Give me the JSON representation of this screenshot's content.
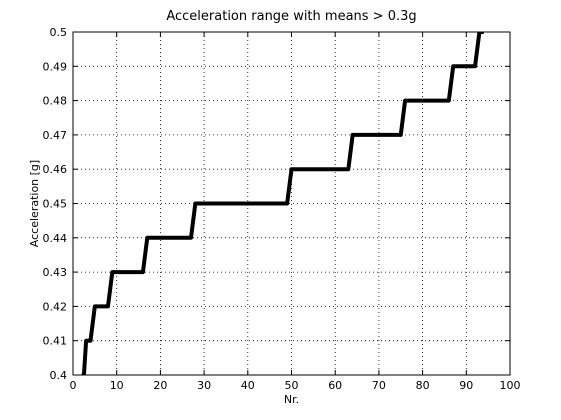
{
  "chart_data": {
    "type": "line",
    "title": "Acceleration range with means > 0.3g",
    "xlabel": "Nr.",
    "ylabel": "Acceleration [g]",
    "xlim": [
      0,
      100
    ],
    "ylim": [
      0.4,
      0.5
    ],
    "xticks": [
      0,
      10,
      20,
      30,
      40,
      50,
      60,
      70,
      80,
      90,
      100
    ],
    "yticks": [
      0.4,
      0.41,
      0.42,
      0.43,
      0.44,
      0.45,
      0.46,
      0.47,
      0.48,
      0.49,
      0.5
    ],
    "grid": true,
    "series": [
      {
        "color": "#000000",
        "x": [
          2,
          2.5,
          3,
          3.5,
          4,
          5,
          6,
          7,
          8,
          9,
          10,
          14,
          16,
          17,
          18,
          22,
          27,
          28,
          29,
          35,
          40,
          45,
          49,
          50,
          51,
          55,
          60,
          63,
          64,
          65,
          70,
          75,
          76,
          77,
          80,
          86,
          87,
          88,
          91,
          92,
          93,
          94
        ],
        "y": [
          0.4,
          0.4,
          0.41,
          0.41,
          0.41,
          0.42,
          0.42,
          0.42,
          0.42,
          0.43,
          0.43,
          0.43,
          0.43,
          0.44,
          0.44,
          0.44,
          0.44,
          0.45,
          0.45,
          0.45,
          0.45,
          0.45,
          0.45,
          0.46,
          0.46,
          0.46,
          0.46,
          0.46,
          0.47,
          0.47,
          0.47,
          0.47,
          0.48,
          0.48,
          0.48,
          0.48,
          0.49,
          0.49,
          0.49,
          0.49,
          0.5,
          0.5
        ]
      }
    ]
  }
}
